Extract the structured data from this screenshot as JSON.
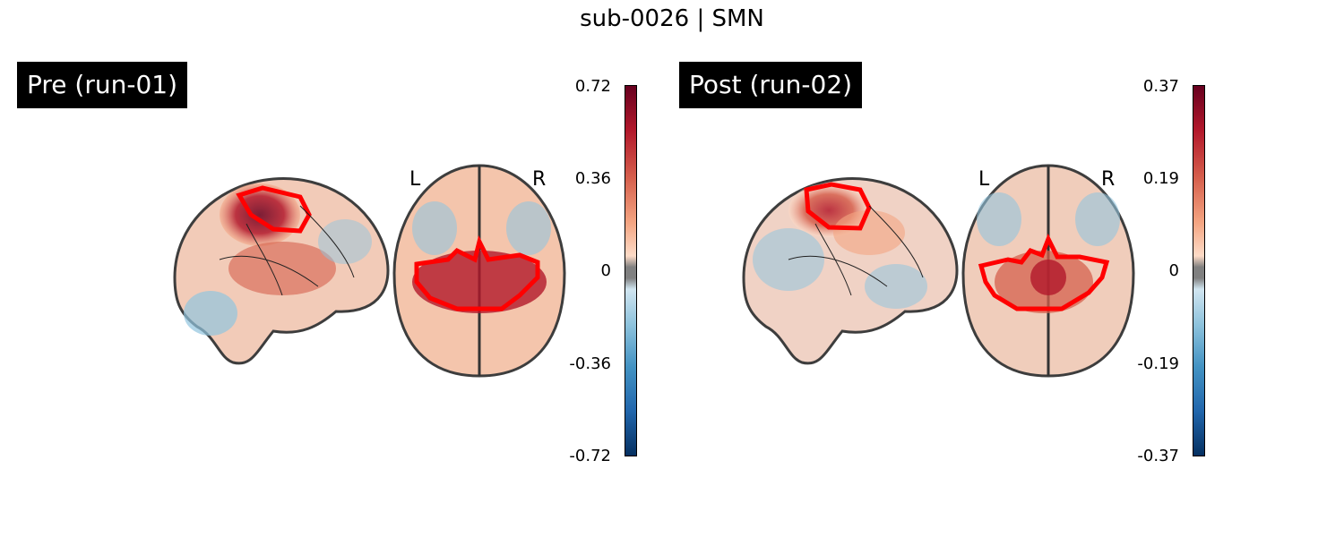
{
  "title": "sub-0026 | SMN",
  "panels": [
    {
      "label": "Pre (run-01)",
      "colorbar": {
        "max": "0.72",
        "mid_high": "0.36",
        "zero": "0",
        "mid_low": "-0.36",
        "min": "-0.72"
      }
    },
    {
      "label": "Post (run-02)",
      "colorbar": {
        "max": "0.37",
        "mid_high": "0.19",
        "zero": "0",
        "mid_low": "-0.19",
        "min": "-0.37"
      }
    }
  ],
  "orientation": {
    "left": "L",
    "right": "R"
  },
  "colors": {
    "outline": "#333333",
    "roi": "#ff0000",
    "positive": "#b2182b",
    "negative": "#2166ac"
  }
}
